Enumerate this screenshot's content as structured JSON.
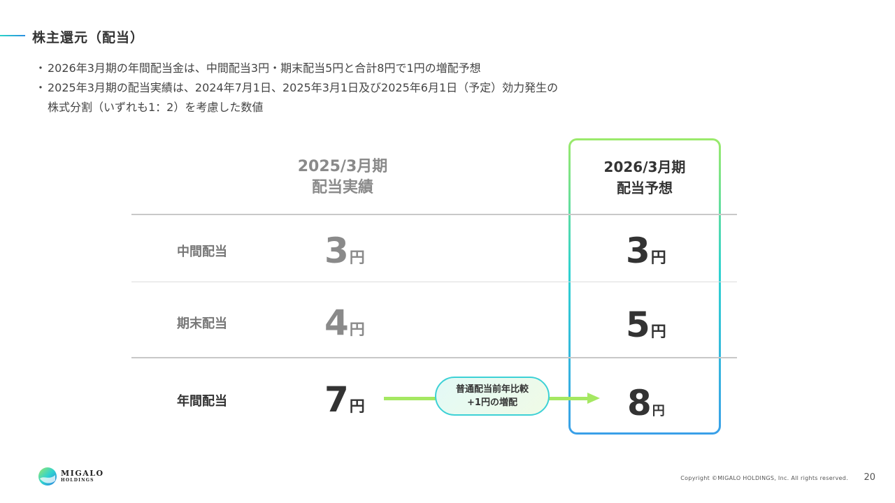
{
  "slide": {
    "title": "株主還元（配当）",
    "bullets": [
      "2026年3月期の年間配当金は、中間配当3円・期末配当5円と合計8円で1円の増配予想",
      "2025年3月期の配当実績は、2024年7月1日、2025年3月1日及び2025年6月1日（予定）効力発生の"
    ],
    "bullet_continuation": "株式分割（いずれも1：2）を考慮した数値",
    "bullet_marker": "・"
  },
  "table": {
    "col_prev": {
      "line1": "2025/3月期",
      "line2": "配当実績"
    },
    "col_next": {
      "line1": "2026/3月期",
      "line2": "配当予想"
    },
    "unit": "円",
    "rows": [
      {
        "label": "中間配当",
        "prev": "3",
        "next": "3"
      },
      {
        "label": "期末配当",
        "prev": "4",
        "next": "5"
      },
      {
        "label": "年間配当",
        "prev": "7",
        "next": "8"
      }
    ]
  },
  "callout": {
    "line1": "普通配当前年比較",
    "line2": "+1円の増配"
  },
  "footer": {
    "logo_line1": "MIGALO",
    "logo_line2": "HOLDINGS",
    "copyright": "Copyright ©MIGALO HOLDINGS, Inc. All rights reserved.",
    "page_number": "20"
  },
  "colors": {
    "accent_green": "#a5e862",
    "accent_cyan": "#3dd1d6",
    "accent_blue": "#3aa0e8"
  }
}
